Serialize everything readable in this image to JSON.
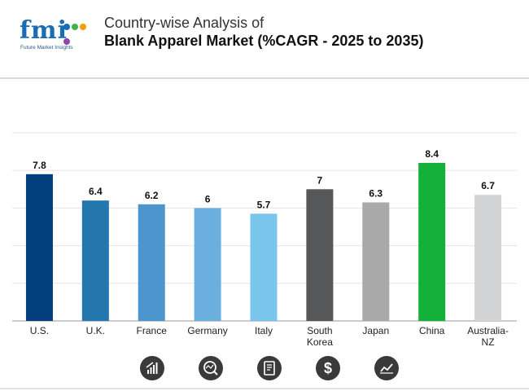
{
  "brand": {
    "logo_text": "fmi",
    "tagline": "Future Market Insights"
  },
  "title": {
    "line1": "Country-wise Analysis of",
    "line2": "Blank Apparel Market (%CAGR - 2025 to 2035)"
  },
  "colors": {
    "bars": [
      "#023f7c",
      "#2377ad",
      "#4d95cd",
      "#6aafdd",
      "#7ac5ec",
      "#565759",
      "#a9a9a9",
      "#13b03a",
      "#d2d3d4"
    ],
    "dots": [
      "#1a6db5",
      "#3cb54a",
      "#f39c12",
      "#8e44ad"
    ]
  },
  "chart_data": {
    "type": "bar",
    "title": "Blank Apparel Market (%CAGR - 2025 to 2035)",
    "categories": [
      "U.S.",
      "U.K.",
      "France",
      "Germany",
      "Italy",
      "South Korea",
      "Japan",
      "China",
      "Australia-NZ"
    ],
    "category_lines": [
      [
        "U.S."
      ],
      [
        "U.K."
      ],
      [
        "France"
      ],
      [
        "Germany"
      ],
      [
        "Italy"
      ],
      [
        "South",
        "Korea"
      ],
      [
        "Japan"
      ],
      [
        "China"
      ],
      [
        "Australia-",
        "NZ"
      ]
    ],
    "values": [
      7.8,
      6.4,
      6.2,
      6,
      5.7,
      7,
      6.3,
      8.4,
      6.7
    ],
    "value_labels": [
      "7.8",
      "6.4",
      "6.2",
      "6",
      "5.7",
      "7",
      "6.3",
      "8.4",
      "6.7"
    ],
    "ylim": [
      0,
      10
    ],
    "grid": true,
    "xlabel": "",
    "ylabel": ""
  },
  "footer_icons": [
    "bar-growth-icon",
    "chart-search-icon",
    "report-document-icon",
    "dollar-icon",
    "trend-line-icon"
  ]
}
